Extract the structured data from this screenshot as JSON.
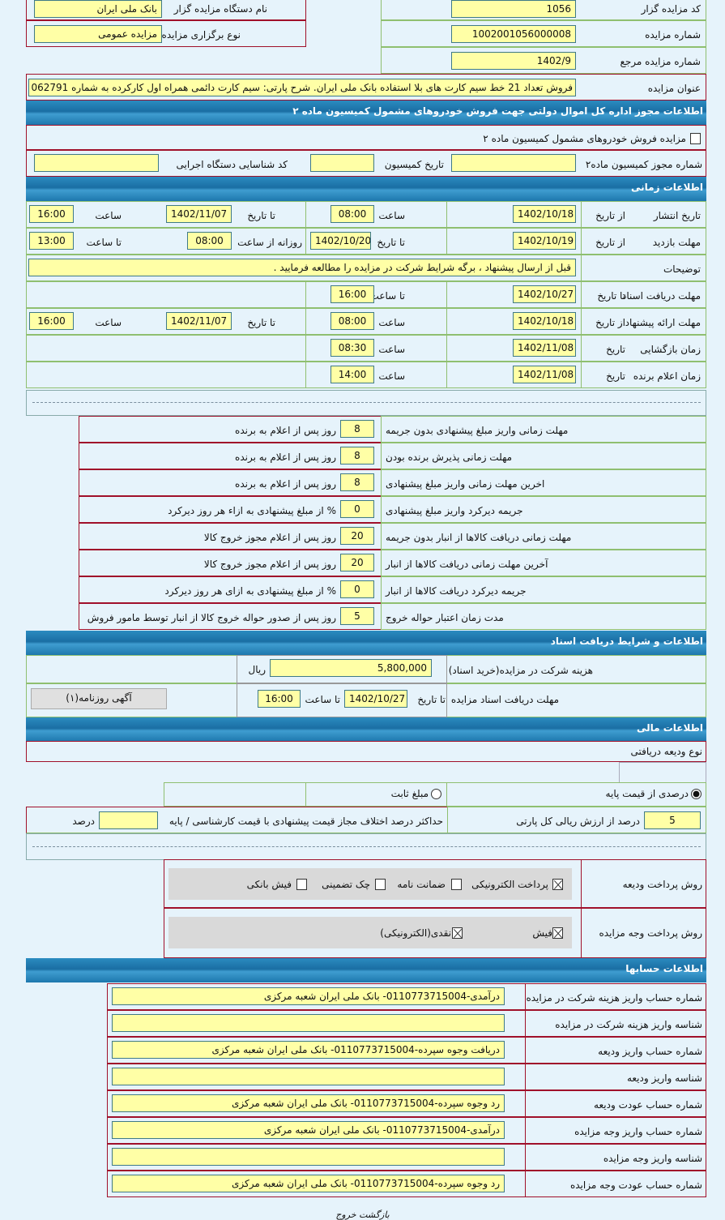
{
  "header": {
    "organizer_code_label": "کد مزایده گزار",
    "organizer_code": "1056",
    "organizer_name_label": "نام دستگاه مزایده گزار",
    "organizer_name": "بانک ملی ایران",
    "auction_number_label": "شماره مزایده",
    "auction_number": "1002001056000008",
    "auction_type_label": "نوع برگزاری مزایده",
    "auction_type": "مزایده عمومی",
    "ref_number_label": "شماره مزایده مرجع",
    "ref_number": "1402/9",
    "title_label": "عنوان مزایده",
    "title": "فروش تعداد 21 خط سیم کارت های بلا استفاده بانک ملی ایران. شرح پارتی:  سیم کارت دائمی همراه اول کارکرده به شماره 062791"
  },
  "commission": {
    "section_title": "اطلاعات مجوز اداره کل اموال دولتی جهت فروش خودروهای مشمول کمیسیون ماده ۲",
    "vehicle_checkbox_label": "مزایده فروش خودروهای مشمول کمیسیون ماده ۲",
    "permit_label": "شماره مجوز کمیسیون ماده۲",
    "permit": "",
    "date_label": "تاریخ کمیسیون",
    "date": "",
    "agency_code_label": "کد شناسایی دستگاه اجرایی",
    "agency_code": ""
  },
  "timing": {
    "section_title": "اطلاعات زمانی",
    "publish": {
      "label": "تاریخ انتشار",
      "from_label": "از تاریخ",
      "from": "1402/10/18",
      "time1_label": "ساعت",
      "time1": "08:00",
      "to_label": "تا تاریخ",
      "to": "1402/11/07",
      "time2_label": "ساعت",
      "time2": "16:00"
    },
    "visit": {
      "label": "مهلت بازدید",
      "from_label": "از تاریخ",
      "from": "1402/10/19",
      "to_label": "تا تاریخ",
      "to": "1402/10/20",
      "daily_label": "روزانه از ساعت",
      "daily": "08:00",
      "until_label": "تا ساعت",
      "until": "13:00"
    },
    "notes": {
      "label": "توضیحات",
      "text": "قبل از ارسال پیشنهاد ، برگه شرایط شرکت در مزایده را مطالعه فرمایید ."
    },
    "docs": {
      "label": "مهلت دریافت اسناد",
      "to_label": "تا تاریخ",
      "to": "1402/10/27",
      "time_label": "تا ساعت",
      "time": "16:00"
    },
    "offer": {
      "label": "مهلت ارائه پیشنهاد",
      "from_label": "از تاریخ",
      "from": "1402/10/18",
      "time1_label": "ساعت",
      "time1": "08:00",
      "to_label": "تا تاریخ",
      "to": "1402/11/07",
      "time2_label": "ساعت",
      "time2": "16:00"
    },
    "opening": {
      "label": "زمان بازگشایی",
      "date_label": "تاریخ",
      "date": "1402/11/08",
      "time_label": "ساعت",
      "time": "08:30"
    },
    "winner": {
      "label": "زمان اعلام برنده",
      "date_label": "تاریخ",
      "date": "1402/11/08",
      "time_label": "ساعت",
      "time": "14:00"
    }
  },
  "penalties": [
    {
      "label": "مهلت زمانی واریز مبلغ پیشنهادی بدون جریمه",
      "value": "8",
      "unit": "روز پس از اعلام به برنده"
    },
    {
      "label": "مهلت زمانی پذیرش برنده بودن",
      "value": "8",
      "unit": "روز پس از اعلام به برنده"
    },
    {
      "label": "اخرین مهلت زمانی واریز مبلغ پیشنهادی",
      "value": "8",
      "unit": "روز پس از اعلام به برنده"
    },
    {
      "label": "جریمه دیرکرد واریز مبلغ پیشنهادی",
      "value": "0",
      "unit": "% از مبلغ پیشنهادی به ازاء هر روز دیرکرد"
    },
    {
      "label": "مهلت زمانی دریافت کالاها از انبار بدون جریمه",
      "value": "20",
      "unit": "روز پس از اعلام مجوز خروج کالا"
    },
    {
      "label": "آخرین مهلت زمانی دریافت کالاها از انبار",
      "value": "20",
      "unit": "روز پس از اعلام مجوز خروج کالا"
    },
    {
      "label": "جریمه دیرکرد دریافت کالاها از انبار",
      "value": "0",
      "unit": "% از مبلغ پیشنهادی به ازای هر روز دیرکرد"
    },
    {
      "label": "مدت زمان اعتبار حواله خروج",
      "value": "5",
      "unit": "روز پس از صدور حواله خروج کالا از انبار توسط مامور فروش"
    }
  ],
  "documents": {
    "section_title": "اطلاعات و شرایط دریافت اسناد",
    "fee_label": "هزینه شرکت در مزایده(خرید اسناد)",
    "fee": "5,800,000",
    "currency": "ریال",
    "deadline_label": "مهلت دریافت اسناد مزایده",
    "to_date_label": "تا تاریخ",
    "to_date": "1402/10/27",
    "to_time_label": "تا ساعت",
    "to_time": "16:00",
    "newspaper_button": "آگهی روزنامه(۱)"
  },
  "finance": {
    "section_title": "اطلاعات مالی",
    "deposit_type_label": "نوع ودیعه دریافتی",
    "radio_percent": "درصدی از قیمت پایه",
    "radio_fixed": "مبلغ ثابت",
    "percent": "5",
    "percent_label": "درصد از ارزش ریالی کل پارتی",
    "max_diff_label": "حداکثر درصد اختلاف مجاز قیمت پیشنهادی با قیمت کارشناسی / پایه",
    "max_diff": "",
    "max_diff_unit": "درصد",
    "deposit_method_label": "روش پرداخت ودیعه",
    "deposit_methods": [
      {
        "label": "پرداخت الکترونیکی",
        "checked": true
      },
      {
        "label": "ضمانت نامه",
        "checked": false
      },
      {
        "label": "چک تضمینی",
        "checked": false
      },
      {
        "label": "فیش بانکی",
        "checked": false
      }
    ],
    "payment_method_label": "روش پرداخت وجه مزایده",
    "payment_methods": [
      {
        "label": "فیش",
        "checked": true
      },
      {
        "label": "نقدی(الکترونیکی)",
        "checked": true
      }
    ]
  },
  "accounts": {
    "section_title": "اطلاعات حسابها",
    "rows": [
      {
        "label": "شماره حساب واریز هزینه شرکت در مزایده",
        "value": "درآمدی-0110773715004- بانک ملی ایران شعبه مرکزی"
      },
      {
        "label": "شناسه واریز هزینه شرکت در مزایده",
        "value": ""
      },
      {
        "label": "شماره حساب واریز ودیعه",
        "value": "دریافت وجوه سپرده-0110773715004- بانک ملی ایران شعبه مرکزی"
      },
      {
        "label": "شناسه واریز ودیعه",
        "value": ""
      },
      {
        "label": "شماره حساب عودت ودیعه",
        "value": "رد وجوه سپرده-0110773715004- بانک ملی ایران شعبه مرکزی"
      },
      {
        "label": "شماره حساب واریز وجه مزایده",
        "value": "درآمدی-0110773715004- بانک ملی ایران شعبه مرکزی"
      },
      {
        "label": "شناسه واریز وجه مزایده",
        "value": ""
      },
      {
        "label": "شماره حساب عودت وجه مزایده",
        "value": "رد وجوه سپرده-0110773715004- بانک ملی ایران شعبه مرکزی"
      }
    ]
  },
  "footer": {
    "back": "بازگشت",
    "exit": "خروج"
  }
}
